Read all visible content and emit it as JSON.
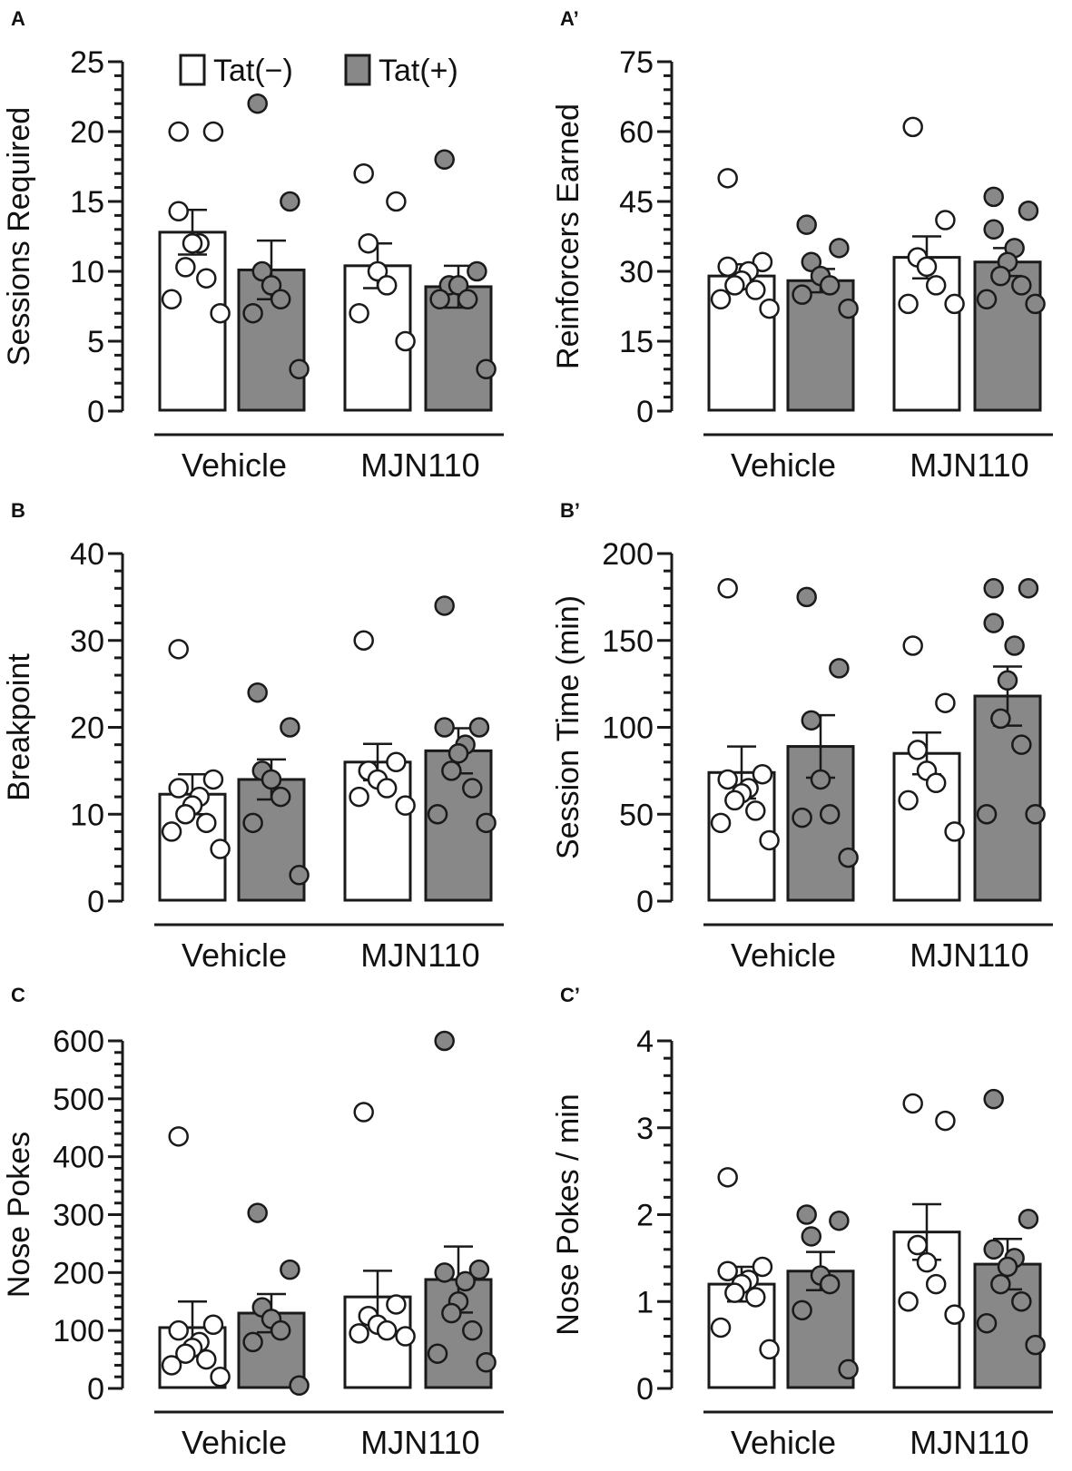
{
  "legend": {
    "items": [
      {
        "label": "Tat(−)",
        "fill": "#ffffff"
      },
      {
        "label": "Tat(+)",
        "fill": "#888888"
      }
    ]
  },
  "colors": {
    "tat_neg": "#ffffff",
    "tat_pos": "#888888",
    "stroke": "#1a1a1a"
  },
  "chart_data": [
    {
      "panel": "A",
      "type": "bar",
      "ylabel": "Sessions Required",
      "ylim": [
        0,
        25
      ],
      "yticks": [
        "0",
        "5",
        "10",
        "15",
        "20",
        "25"
      ],
      "groups": [
        "Vehicle",
        "MJN110"
      ],
      "series": [
        {
          "name": "Tat(−)",
          "means": [
            12.8,
            10.4
          ],
          "sem": [
            1.6,
            1.6
          ],
          "points": [
            [
              20,
              20,
              14.3,
              12,
              12,
              10.3,
              9.5,
              8,
              7
            ],
            [
              17,
              15,
              12,
              10,
              9,
              7,
              5
            ]
          ]
        },
        {
          "name": "Tat(+)",
          "means": [
            10.1,
            8.9
          ],
          "sem": [
            2.1,
            1.5
          ],
          "points": [
            [
              22,
              15,
              10,
              9,
              8,
              7,
              3
            ],
            [
              18,
              10,
              9,
              9,
              8,
              8,
              3
            ]
          ]
        }
      ]
    },
    {
      "panel": "A’",
      "type": "bar",
      "ylabel": "Reinforcers Earned",
      "ylim": [
        0,
        75
      ],
      "yticks": [
        "0",
        "15",
        "30",
        "45",
        "60",
        "75"
      ],
      "groups": [
        "Vehicle",
        "MJN110"
      ],
      "series": [
        {
          "name": "Tat(−)",
          "means": [
            29,
            33
          ],
          "sem": [
            2.5,
            4.5
          ],
          "points": [
            [
              50,
              32,
              31,
              30,
              28,
              27,
              26,
              24,
              22
            ],
            [
              61,
              41,
              33,
              31,
              27,
              23,
              23
            ]
          ]
        },
        {
          "name": "Tat(+)",
          "means": [
            28,
            32
          ],
          "sem": [
            2.5,
            3
          ],
          "points": [
            [
              40,
              35,
              32,
              29,
              27,
              25,
              22
            ],
            [
              46,
              43,
              39,
              35,
              32,
              29,
              27,
              24,
              23
            ]
          ]
        }
      ]
    },
    {
      "panel": "B",
      "type": "bar",
      "ylabel": "Breakpoint",
      "ylim": [
        0,
        40
      ],
      "yticks": [
        "0",
        "10",
        "20",
        "30",
        "40"
      ],
      "groups": [
        "Vehicle",
        "MJN110"
      ],
      "series": [
        {
          "name": "Tat(−)",
          "means": [
            12.3,
            16
          ],
          "sem": [
            2.3,
            2.1
          ],
          "points": [
            [
              29,
              14,
              13,
              12,
              11,
              10,
              9,
              8,
              6
            ],
            [
              30,
              16,
              15,
              14,
              13,
              12,
              11
            ]
          ]
        },
        {
          "name": "Tat(+)",
          "means": [
            14,
            17.3
          ],
          "sem": [
            2.3,
            2.6
          ],
          "points": [
            [
              24,
              20,
              15,
              14,
              12,
              9,
              3
            ],
            [
              34,
              20,
              20,
              18,
              17,
              15,
              13,
              10,
              9
            ]
          ]
        }
      ]
    },
    {
      "panel": "B’",
      "type": "bar",
      "ylabel": "Session Time (min)",
      "ylim": [
        0,
        200
      ],
      "yticks": [
        "0",
        "50",
        "100",
        "150",
        "200"
      ],
      "groups": [
        "Vehicle",
        "MJN110"
      ],
      "series": [
        {
          "name": "Tat(−)",
          "means": [
            74,
            85
          ],
          "sem": [
            15,
            12
          ],
          "points": [
            [
              180,
              73,
              70,
              65,
              62,
              58,
              52,
              45,
              35
            ],
            [
              147,
              114,
              87,
              75,
              68,
              58,
              40
            ]
          ]
        },
        {
          "name": "Tat(+)",
          "means": [
            89,
            118
          ],
          "sem": [
            18,
            17
          ],
          "points": [
            [
              175,
              134,
              104,
              70,
              50,
              48,
              25
            ],
            [
              180,
              180,
              160,
              147,
              127,
              105,
              90,
              50,
              50
            ]
          ]
        }
      ]
    },
    {
      "panel": "C",
      "type": "bar",
      "ylabel": "Nose Pokes",
      "ylim": [
        0,
        600
      ],
      "yticks": [
        "0",
        "100",
        "200",
        "300",
        "400",
        "500",
        "600"
      ],
      "groups": [
        "Vehicle",
        "MJN110"
      ],
      "series": [
        {
          "name": "Tat(−)",
          "means": [
            105,
            158
          ],
          "sem": [
            45,
            45
          ],
          "points": [
            [
              435,
              110,
              100,
              80,
              70,
              60,
              50,
              40,
              20
            ],
            [
              477,
              145,
              125,
              110,
              100,
              95,
              90
            ]
          ]
        },
        {
          "name": "Tat(+)",
          "means": [
            130,
            188
          ],
          "sem": [
            33,
            57
          ],
          "points": [
            [
              303,
              205,
              140,
              120,
              100,
              80,
              5
            ],
            [
              600,
              205,
              200,
              185,
              150,
              130,
              100,
              60,
              45
            ]
          ]
        }
      ]
    },
    {
      "panel": "C’",
      "type": "bar",
      "ylabel": "Nose Pokes / min",
      "ylim": [
        0,
        4
      ],
      "yticks": [
        "0",
        "1",
        "2",
        "3",
        "4"
      ],
      "groups": [
        "Vehicle",
        "MJN110"
      ],
      "series": [
        {
          "name": "Tat(−)",
          "means": [
            1.2,
            1.8
          ],
          "sem": [
            0.2,
            0.32
          ],
          "points": [
            [
              2.43,
              1.4,
              1.35,
              1.25,
              1.2,
              1.1,
              1.05,
              0.7,
              0.45
            ],
            [
              3.28,
              3.08,
              1.65,
              1.45,
              1.2,
              1,
              0.85
            ]
          ]
        },
        {
          "name": "Tat(+)",
          "means": [
            1.35,
            1.43
          ],
          "sem": [
            0.22,
            0.29
          ],
          "points": [
            [
              2,
              1.93,
              1.75,
              1.3,
              1.2,
              0.9,
              0.22
            ],
            [
              3.33,
              1.95,
              1.6,
              1.5,
              1.4,
              1.2,
              1,
              0.75,
              0.5
            ]
          ]
        }
      ]
    }
  ]
}
